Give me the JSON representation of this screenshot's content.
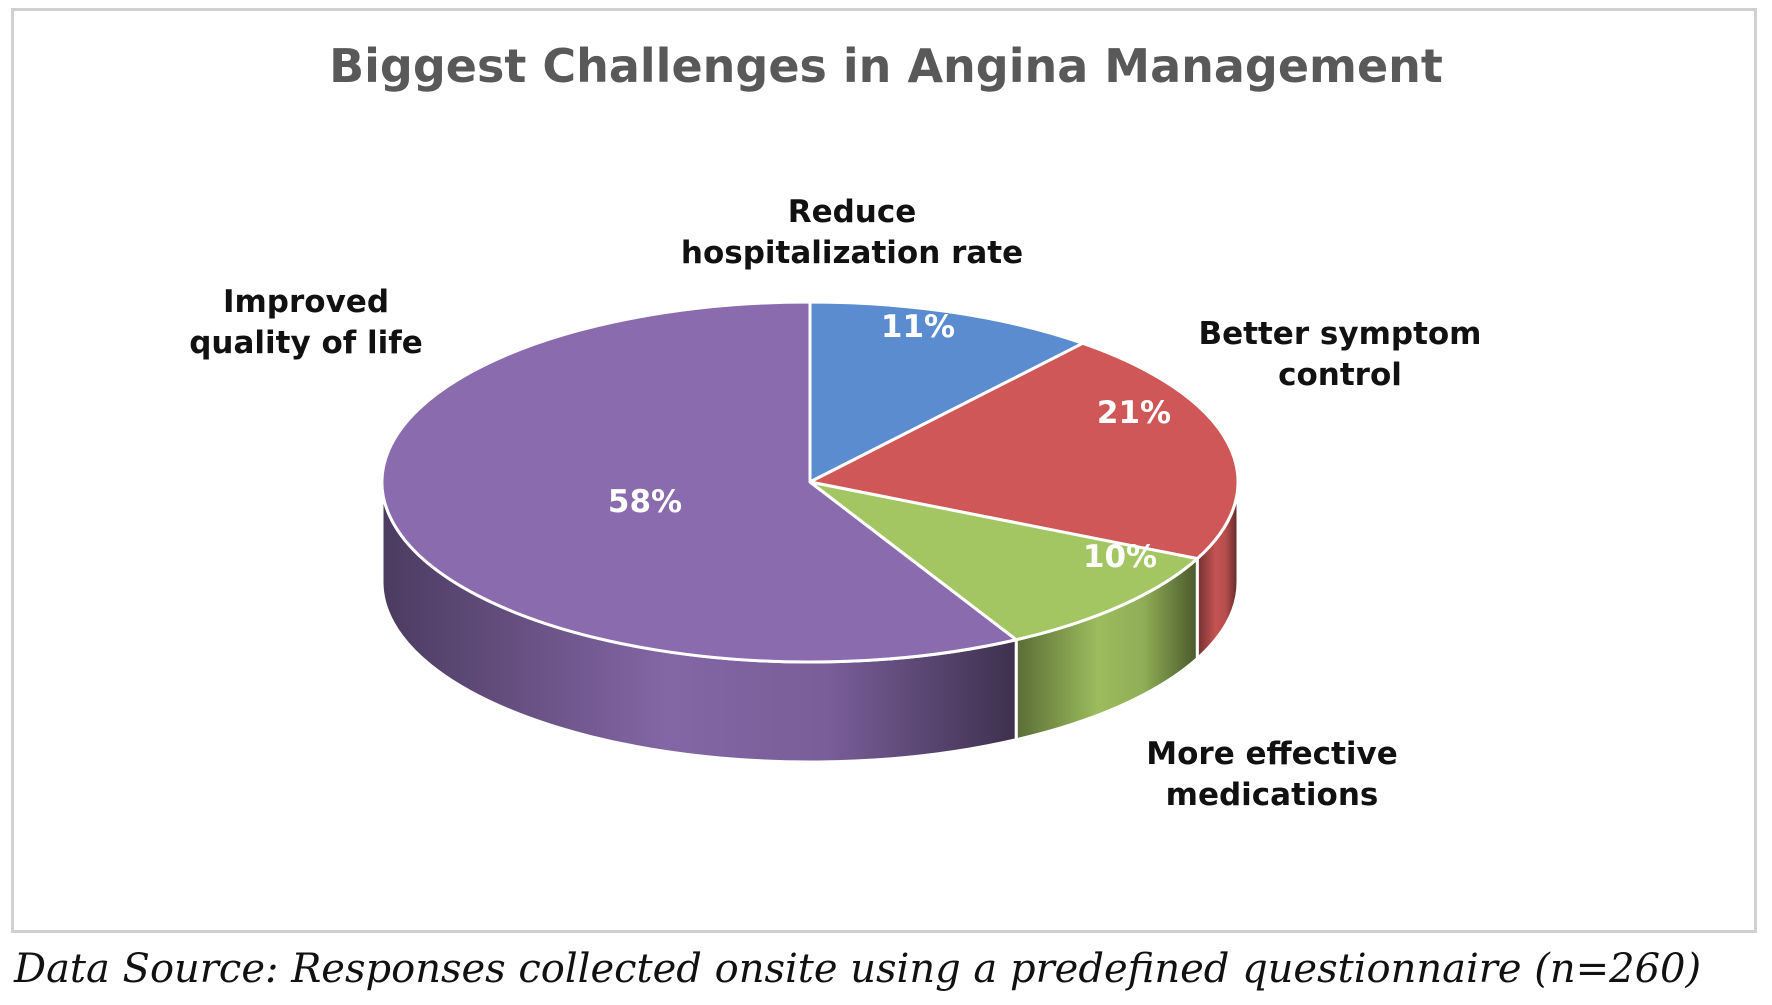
{
  "chart_data": {
    "type": "pie",
    "title": "Biggest Challenges in Angina Management",
    "categories": [
      "Reduce hospitalization rate",
      "Better symptom control",
      "More effective medications",
      "Improved quality of life"
    ],
    "label_lines": [
      [
        "Reduce",
        "hospitalization rate"
      ],
      [
        "Better symptom",
        "control"
      ],
      [
        "More effective",
        "medications"
      ],
      [
        "Improved",
        "quality of life"
      ]
    ],
    "values": [
      11,
      21,
      10,
      58
    ],
    "value_labels": [
      "11%",
      "21%",
      "10%",
      "58%"
    ],
    "colors": [
      "#5B8CCF",
      "#CF5757",
      "#A4C662",
      "#8A6BAE"
    ],
    "style": "3d-pie"
  },
  "footer": {
    "source": "Data Source: Responses collected onsite using a predefined questionnaire (n=260)"
  }
}
